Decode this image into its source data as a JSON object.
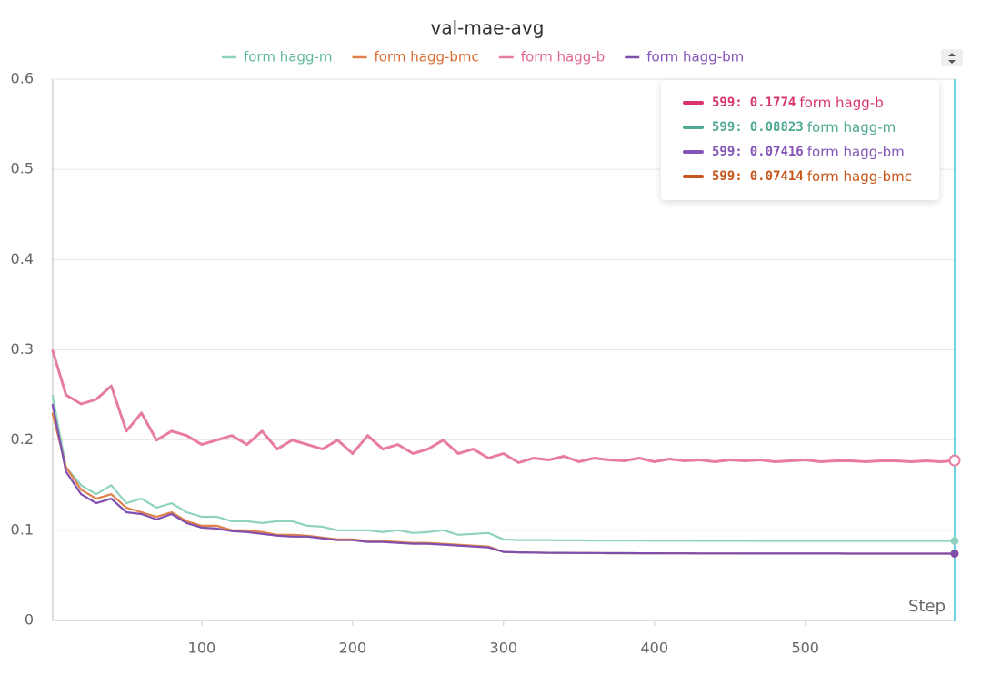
{
  "chart_data": {
    "type": "line",
    "title": "val-mae-avg",
    "x_label": "Step",
    "x": [
      1,
      10,
      20,
      30,
      40,
      50,
      60,
      70,
      80,
      90,
      100,
      110,
      120,
      130,
      140,
      150,
      160,
      170,
      180,
      190,
      200,
      210,
      220,
      230,
      240,
      250,
      260,
      270,
      280,
      290,
      300,
      310,
      320,
      330,
      340,
      350,
      360,
      370,
      380,
      390,
      400,
      410,
      420,
      430,
      440,
      450,
      460,
      470,
      480,
      490,
      500,
      510,
      520,
      530,
      540,
      550,
      560,
      570,
      580,
      590,
      599
    ],
    "xlim": [
      0,
      599
    ],
    "xticks": [
      100,
      200,
      300,
      400,
      500
    ],
    "ylim": [
      0,
      0.6
    ],
    "yticks": [
      0,
      0.1,
      0.2,
      0.3,
      0.4,
      0.5,
      0.6
    ],
    "grid": true,
    "series": [
      {
        "name": "form hagg-m",
        "color": "#8fd3bf",
        "legend_color": "#5fb79f",
        "values": [
          0.25,
          0.17,
          0.15,
          0.14,
          0.15,
          0.13,
          0.135,
          0.125,
          0.13,
          0.12,
          0.115,
          0.115,
          0.11,
          0.11,
          0.108,
          0.11,
          0.11,
          0.105,
          0.104,
          0.1,
          0.1,
          0.1,
          0.098,
          0.1,
          0.097,
          0.098,
          0.1,
          0.095,
          0.096,
          0.097,
          0.09,
          0.089,
          0.089,
          0.089,
          0.0888,
          0.0888,
          0.0886,
          0.0886,
          0.0885,
          0.0885,
          0.0884,
          0.0884,
          0.0884,
          0.0883,
          0.0883,
          0.0883,
          0.0883,
          0.0882,
          0.0882,
          0.0882,
          0.0882,
          0.0882,
          0.0882,
          0.0882,
          0.0882,
          0.0882,
          0.0882,
          0.0882,
          0.0882,
          0.0882,
          0.08823
        ]
      },
      {
        "name": "form hagg-bmc",
        "color": "#e0804a",
        "legend_color": "#d96a2e",
        "values": [
          0.23,
          0.17,
          0.145,
          0.135,
          0.14,
          0.125,
          0.12,
          0.115,
          0.12,
          0.11,
          0.105,
          0.105,
          0.1,
          0.1,
          0.098,
          0.095,
          0.095,
          0.094,
          0.092,
          0.09,
          0.09,
          0.088,
          0.088,
          0.087,
          0.086,
          0.086,
          0.085,
          0.084,
          0.083,
          0.082,
          0.076,
          0.0755,
          0.0752,
          0.075,
          0.075,
          0.0748,
          0.0748,
          0.0746,
          0.0746,
          0.0745,
          0.0745,
          0.0744,
          0.0744,
          0.0743,
          0.0743,
          0.0743,
          0.0742,
          0.0742,
          0.0742,
          0.0742,
          0.0742,
          0.0742,
          0.0742,
          0.0741,
          0.0741,
          0.0741,
          0.0741,
          0.0741,
          0.0741,
          0.0741,
          0.07414
        ]
      },
      {
        "name": "form hagg-b",
        "color": "#e87ca0",
        "legend_color": "#e06590",
        "values": [
          0.3,
          0.25,
          0.24,
          0.245,
          0.26,
          0.21,
          0.23,
          0.2,
          0.21,
          0.205,
          0.195,
          0.2,
          0.205,
          0.195,
          0.21,
          0.19,
          0.2,
          0.195,
          0.19,
          0.2,
          0.185,
          0.205,
          0.19,
          0.195,
          0.185,
          0.19,
          0.2,
          0.185,
          0.19,
          0.18,
          0.185,
          0.175,
          0.18,
          0.178,
          0.182,
          0.176,
          0.18,
          0.178,
          0.177,
          0.18,
          0.176,
          0.179,
          0.177,
          0.178,
          0.176,
          0.178,
          0.177,
          0.178,
          0.176,
          0.177,
          0.178,
          0.176,
          0.177,
          0.177,
          0.176,
          0.177,
          0.177,
          0.176,
          0.177,
          0.176,
          0.1774
        ]
      },
      {
        "name": "form hagg-bm",
        "color": "#7f4fad",
        "legend_color": "#8554b8",
        "values": [
          0.24,
          0.165,
          0.14,
          0.13,
          0.135,
          0.12,
          0.118,
          0.112,
          0.118,
          0.108,
          0.103,
          0.102,
          0.099,
          0.098,
          0.096,
          0.094,
          0.093,
          0.093,
          0.091,
          0.089,
          0.089,
          0.087,
          0.087,
          0.086,
          0.085,
          0.085,
          0.084,
          0.083,
          0.082,
          0.081,
          0.076,
          0.0755,
          0.0752,
          0.075,
          0.075,
          0.0748,
          0.0748,
          0.0746,
          0.0746,
          0.0745,
          0.0745,
          0.0744,
          0.0744,
          0.0743,
          0.0743,
          0.0743,
          0.0742,
          0.0742,
          0.0742,
          0.0742,
          0.0742,
          0.0742,
          0.0742,
          0.0741,
          0.0741,
          0.0741,
          0.0741,
          0.0741,
          0.0741,
          0.0741,
          0.07416
        ]
      }
    ],
    "tooltip": {
      "step": 599,
      "separator": ":",
      "rows": [
        {
          "name": "form hagg-b",
          "value": 0.1774,
          "color": "#d8336f"
        },
        {
          "name": "form hagg-m",
          "value": 0.08823,
          "color": "#4ea893"
        },
        {
          "name": "form hagg-bm",
          "value": 0.07416,
          "color": "#8554b8"
        },
        {
          "name": "form hagg-bmc",
          "value": 0.07414,
          "color": "#c8561a"
        }
      ]
    }
  }
}
